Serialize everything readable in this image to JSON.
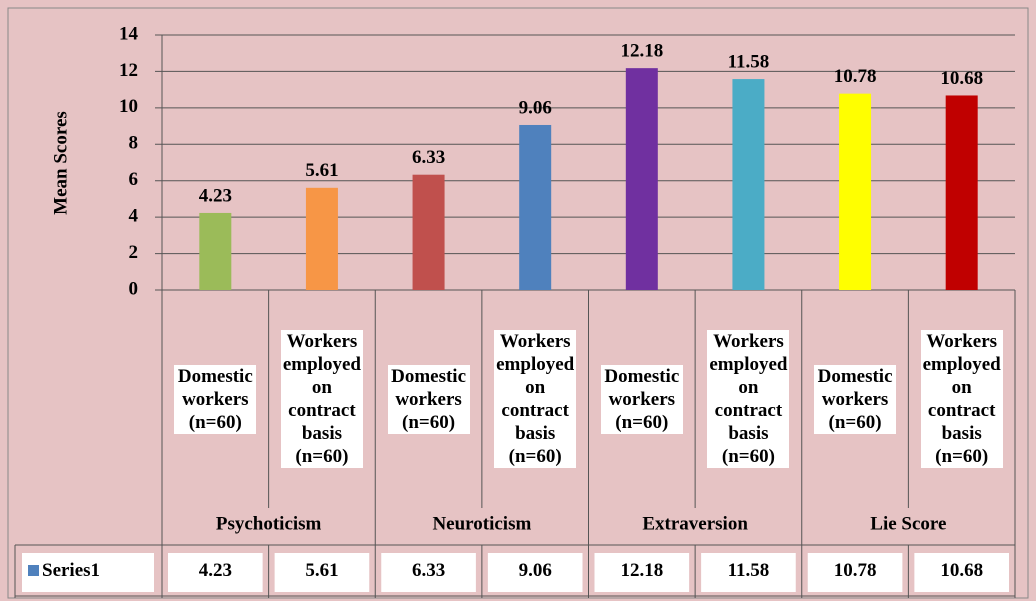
{
  "chart_data": {
    "type": "bar",
    "y_axis_label": "Mean Scores",
    "groups": [
      "Psychoticism",
      "Neuroticism",
      "Extraversion",
      "Lie Score"
    ],
    "categories": [
      "Domestic workers (n=60)",
      "Workers employed on contract basis (n=60)",
      "Domestic workers (n=60)",
      "Workers employed on contract basis (n=60)",
      "Domestic workers (n=60)",
      "Workers employed on contract basis (n=60)",
      "Domestic workers (n=60)",
      "Workers employed on contract basis (n=60)"
    ],
    "series": [
      {
        "name": "Series1",
        "color": "#4F81BD",
        "point_colors": [
          "#9BBB59",
          "#F79646",
          "#C0504D",
          "#4F81BD",
          "#7030A0",
          "#4BACC6",
          "#FFFF00",
          "#C00000"
        ],
        "values": [
          4.23,
          5.61,
          6.33,
          9.06,
          12.18,
          11.58,
          10.78,
          10.68
        ]
      }
    ],
    "ylim": [
      0,
      14
    ],
    "yticks": [
      0,
      2,
      4,
      6,
      8,
      10,
      12,
      14
    ],
    "grid": true,
    "data_table": true
  }
}
